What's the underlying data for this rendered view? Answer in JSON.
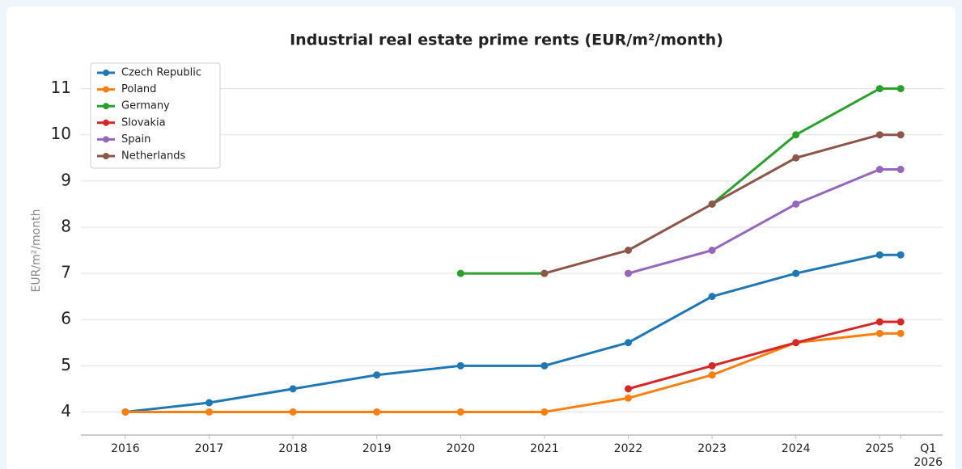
{
  "chart_data": {
    "type": "line",
    "title": "Industrial real estate prime rents (EUR/m²/month)",
    "ylabel": "EUR/m²/month",
    "x": [
      2016,
      2017,
      2018,
      2019,
      2020,
      2021,
      2022,
      2023,
      2024,
      2025,
      2025.25
    ],
    "xticks": [
      2016,
      2017,
      2018,
      2019,
      2020,
      2021,
      2022,
      2023,
      2024,
      2025,
      {
        "value": 2025.25,
        "label": "Q1 2026"
      }
    ],
    "xlim": [
      2015.47,
      2025.75
    ],
    "ylim": [
      3.5,
      11.5
    ],
    "yticks": [
      4,
      5,
      6,
      7,
      8,
      9,
      10,
      11
    ],
    "grid": true,
    "legend": "upper left",
    "series": [
      {
        "name": "Czech Republic",
        "color": "#1f77b4",
        "values": [
          4,
          4.2,
          4.5,
          4.8,
          5,
          5,
          5.5,
          6.5,
          7,
          7.4,
          7.4
        ]
      },
      {
        "name": "Poland",
        "color": "#ff7f0e",
        "values": [
          4,
          4,
          4,
          4,
          4,
          4,
          4.3,
          4.8,
          5.5,
          5.7,
          5.7
        ]
      },
      {
        "name": "Germany",
        "color": "#2ca02c",
        "values": [
          null,
          null,
          null,
          null,
          7,
          7,
          null,
          8.5,
          10,
          11,
          11
        ]
      },
      {
        "name": "Slovakia",
        "color": "#d62728",
        "values": [
          null,
          null,
          null,
          null,
          null,
          null,
          4.5,
          5,
          5.5,
          5.95,
          5.95
        ]
      },
      {
        "name": "Spain",
        "color": "#9467bd",
        "values": [
          null,
          null,
          null,
          null,
          null,
          null,
          7,
          7.5,
          8.5,
          9.25,
          9.25
        ]
      },
      {
        "name": "Netherlands",
        "color": "#8c564b",
        "values": [
          null,
          null,
          null,
          null,
          null,
          7,
          7.5,
          8.5,
          9.5,
          10,
          10
        ]
      }
    ]
  }
}
